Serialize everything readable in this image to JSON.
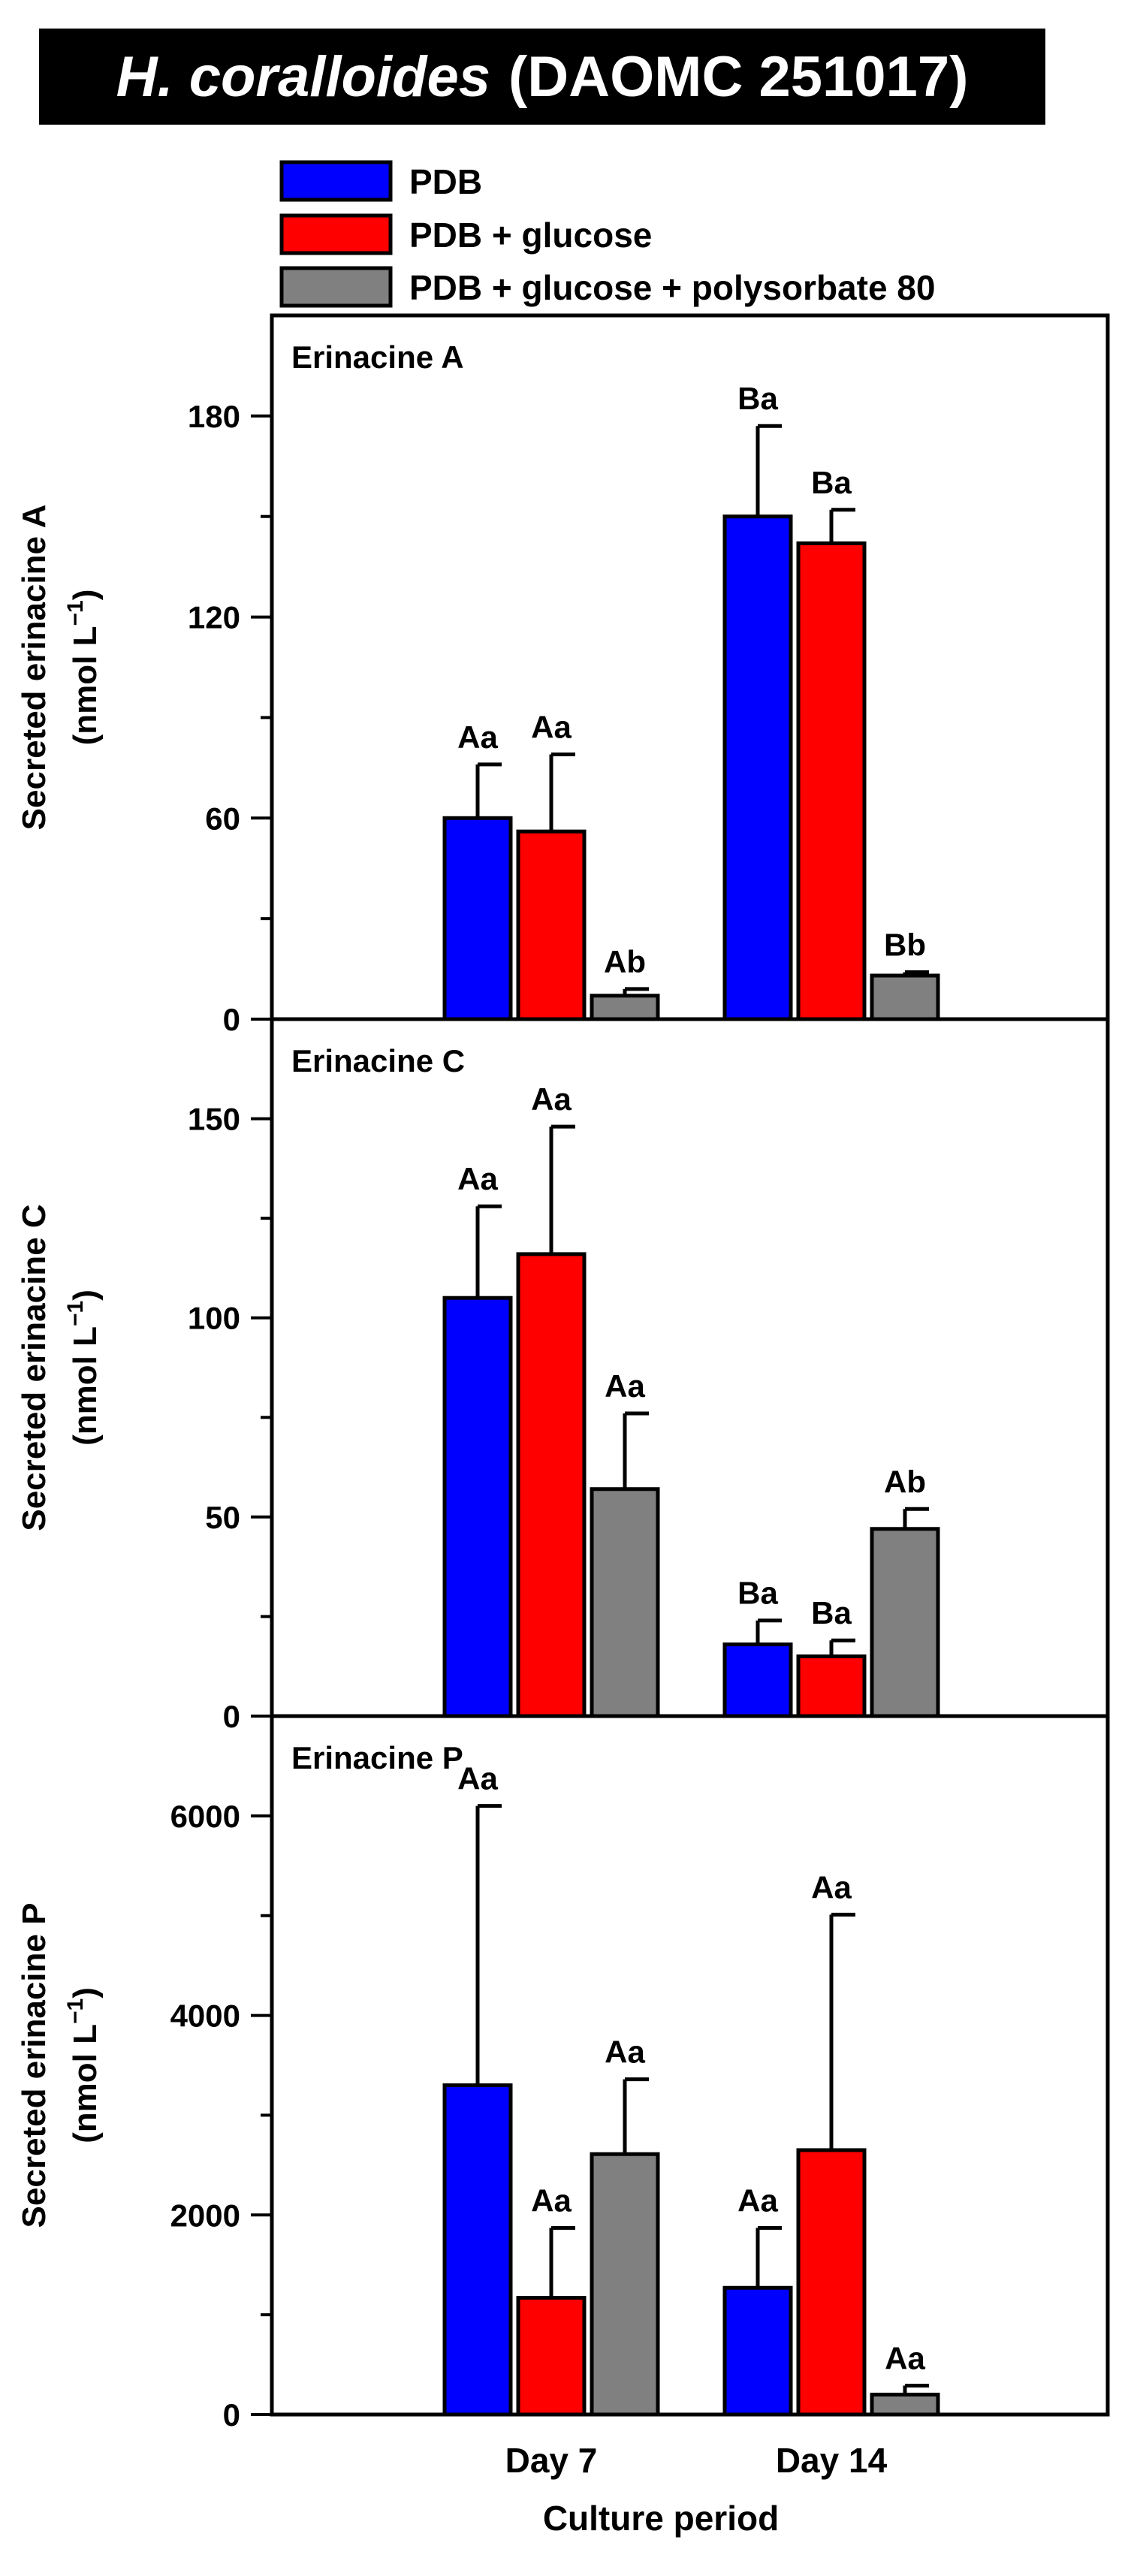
{
  "title": {
    "italic": "H.  coralloides",
    "normal": "(DAOMC 251017)"
  },
  "legend": [
    {
      "label": "PDB",
      "color": "#0000ff"
    },
    {
      "label": "PDB + glucose",
      "color": "#ff0000"
    },
    {
      "label": "PDB + glucose + polysorbate 80",
      "color": "#808080"
    }
  ],
  "chart_data": [
    {
      "type": "bar",
      "title": "Erinacine A",
      "ylabel_line1": "Secreted erinacine A",
      "ylabel_line2": "(nmol L",
      "ylabel_sup": "−1",
      "ylabel_close": ")",
      "categories": [
        "Day 7",
        "Day 14"
      ],
      "ylim": [
        0,
        210
      ],
      "yticks": [
        0,
        60,
        120,
        180
      ],
      "yminor": 30,
      "series": [
        {
          "name": "PDB",
          "values": [
            60,
            150
          ],
          "errors": [
            16,
            27
          ],
          "letters": [
            "Aa",
            "Ba"
          ]
        },
        {
          "name": "PDB + glucose",
          "values": [
            56,
            142
          ],
          "errors": [
            23,
            10
          ],
          "letters": [
            "Aa",
            "Ba"
          ]
        },
        {
          "name": "PDB + glucose + polysorbate 80",
          "values": [
            7,
            13
          ],
          "errors": [
            2,
            1
          ],
          "letters": [
            "Ab",
            "Bb"
          ]
        }
      ]
    },
    {
      "type": "bar",
      "title": "Erinacine C",
      "ylabel_line1": "Secreted erinacine C",
      "ylabel_line2": "(nmol L",
      "ylabel_sup": "−1",
      "ylabel_close": ")",
      "categories": [
        "Day 7",
        "Day 14"
      ],
      "ylim": [
        0,
        175
      ],
      "yticks": [
        0,
        50,
        100,
        150
      ],
      "yminor": 25,
      "series": [
        {
          "name": "PDB",
          "values": [
            105,
            18
          ],
          "errors": [
            23,
            6
          ],
          "letters": [
            "Aa",
            "Ba"
          ]
        },
        {
          "name": "PDB + glucose",
          "values": [
            116,
            15
          ],
          "errors": [
            32,
            4
          ],
          "letters": [
            "Aa",
            "Ba"
          ]
        },
        {
          "name": "PDB + glucose + polysorbate 80",
          "values": [
            57,
            47
          ],
          "errors": [
            19,
            5
          ],
          "letters": [
            "Aa",
            "Ab"
          ]
        }
      ]
    },
    {
      "type": "bar",
      "title": "Erinacine P",
      "ylabel_line1": "Secreted erinacine P",
      "ylabel_line2": "(nmol L",
      "ylabel_sup": "−1",
      "ylabel_close": ")",
      "categories": [
        "Day 7",
        "Day 14"
      ],
      "ylim": [
        0,
        7000
      ],
      "yticks": [
        0,
        2000,
        4000,
        6000
      ],
      "yminor": 1000,
      "series": [
        {
          "name": "PDB",
          "values": [
            3300,
            1270
          ],
          "errors": [
            2800,
            600
          ],
          "letters": [
            "Aa",
            "Aa"
          ]
        },
        {
          "name": "PDB + glucose",
          "values": [
            1170,
            2650
          ],
          "errors": [
            700,
            2360
          ],
          "letters": [
            "Aa",
            "Aa"
          ]
        },
        {
          "name": "PDB + glucose + polysorbate 80",
          "values": [
            2610,
            200
          ],
          "errors": [
            750,
            90
          ],
          "letters": [
            "Aa",
            "Aa"
          ]
        }
      ]
    }
  ],
  "xlabel": "Culture period"
}
